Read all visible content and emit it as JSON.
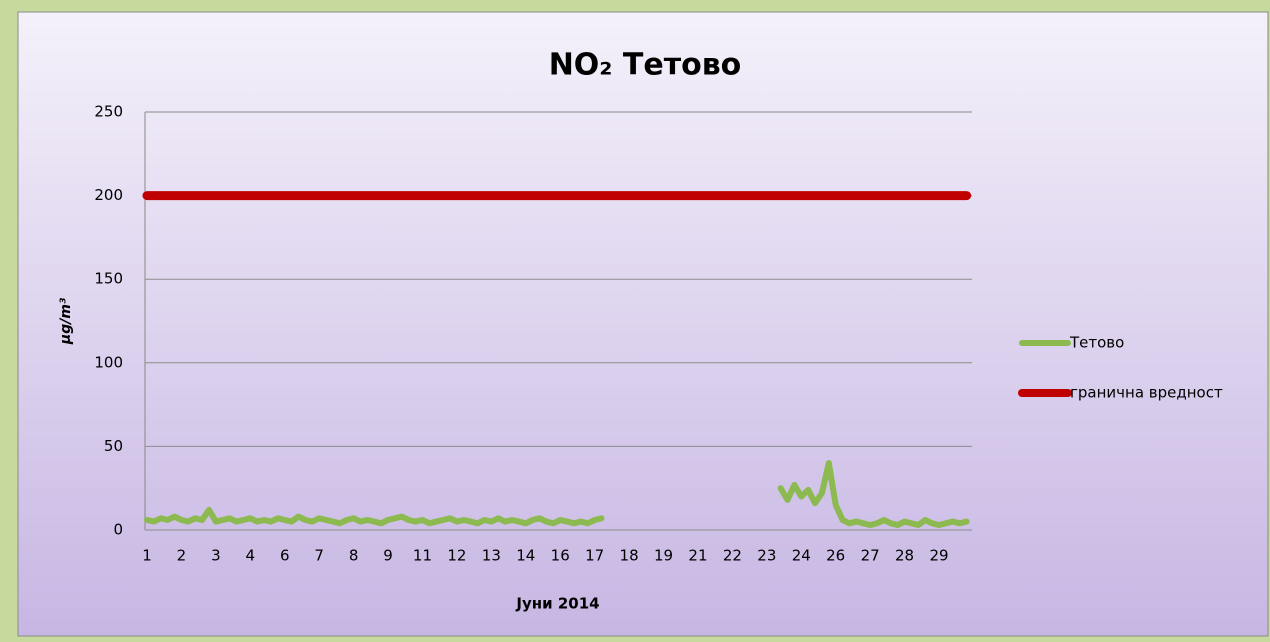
{
  "chart_data": {
    "type": "line",
    "title": "NO₂ Тетово",
    "y_label": "µg/m³",
    "x_label": "Јуни 2014",
    "categories": [
      "1",
      null,
      null,
      null,
      null,
      "2",
      null,
      null,
      null,
      null,
      "3",
      null,
      null,
      null,
      null,
      "4",
      null,
      null,
      null,
      null,
      "6",
      null,
      null,
      null,
      null,
      "7",
      null,
      null,
      null,
      null,
      "8",
      null,
      null,
      null,
      null,
      "9",
      null,
      null,
      null,
      null,
      "11",
      null,
      null,
      null,
      null,
      "12",
      null,
      null,
      null,
      null,
      "13",
      null,
      null,
      null,
      null,
      "14",
      null,
      null,
      null,
      null,
      "16",
      null,
      null,
      null,
      null,
      "17",
      null,
      null,
      null,
      null,
      "18",
      null,
      null,
      null,
      null,
      "19",
      null,
      null,
      null,
      null,
      "21",
      null,
      null,
      null,
      null,
      "22",
      null,
      null,
      null,
      null,
      "23",
      null,
      null,
      null,
      null,
      "24",
      null,
      null,
      null,
      null,
      "26",
      null,
      null,
      null,
      null,
      "27",
      null,
      null,
      null,
      null,
      "28",
      null,
      null,
      null,
      null,
      "29",
      null,
      null,
      null,
      null
    ],
    "series": [
      {
        "name": "Тетово",
        "color": "#8cba50",
        "values": [
          6,
          5,
          7,
          6,
          8,
          6,
          5,
          7,
          6,
          12,
          5,
          6,
          7,
          5,
          6,
          7,
          5,
          6,
          5,
          7,
          6,
          5,
          8,
          6,
          5,
          7,
          6,
          5,
          4,
          6,
          7,
          5,
          6,
          5,
          4,
          6,
          7,
          8,
          6,
          5,
          6,
          4,
          5,
          6,
          7,
          5,
          6,
          5,
          4,
          6,
          5,
          7,
          5,
          6,
          5,
          4,
          6,
          7,
          5,
          4,
          6,
          5,
          4,
          5,
          4,
          6,
          7,
          null,
          null,
          null,
          null,
          null,
          null,
          null,
          null,
          null,
          null,
          null,
          null,
          null,
          null,
          null,
          null,
          null,
          null,
          null,
          null,
          null,
          null,
          null,
          null,
          null,
          25,
          18,
          27,
          20,
          24,
          16,
          22,
          40,
          15,
          6,
          4,
          5,
          4,
          3,
          4,
          6,
          4,
          3,
          5,
          4,
          3,
          6,
          4,
          3,
          4,
          5,
          4,
          5
        ]
      },
      {
        "name": "гранична вредност",
        "color": "#c00000",
        "values": [
          200,
          200,
          200,
          200,
          200,
          200,
          200,
          200,
          200,
          200,
          200,
          200,
          200,
          200,
          200,
          200,
          200,
          200,
          200,
          200,
          200,
          200,
          200,
          200,
          200,
          200,
          200,
          200,
          200,
          200,
          200,
          200,
          200,
          200,
          200,
          200,
          200,
          200,
          200,
          200,
          200,
          200,
          200,
          200,
          200,
          200,
          200,
          200,
          200,
          200,
          200,
          200,
          200,
          200,
          200,
          200,
          200,
          200,
          200,
          200,
          200,
          200,
          200,
          200,
          200,
          200,
          200,
          200,
          200,
          200,
          200,
          200,
          200,
          200,
          200,
          200,
          200,
          200,
          200,
          200,
          200,
          200,
          200,
          200,
          200,
          200,
          200,
          200,
          200,
          200,
          200,
          200,
          200,
          200,
          200,
          200,
          200,
          200,
          200,
          200,
          200,
          200,
          200,
          200,
          200,
          200,
          200,
          200,
          200,
          200,
          200,
          200,
          200,
          200,
          200,
          200,
          200,
          200,
          200,
          200
        ]
      }
    ],
    "ylim": [
      0,
      250
    ],
    "yticks": [
      0,
      50,
      100,
      150,
      200,
      250
    ],
    "grid": true,
    "legend": "right"
  }
}
